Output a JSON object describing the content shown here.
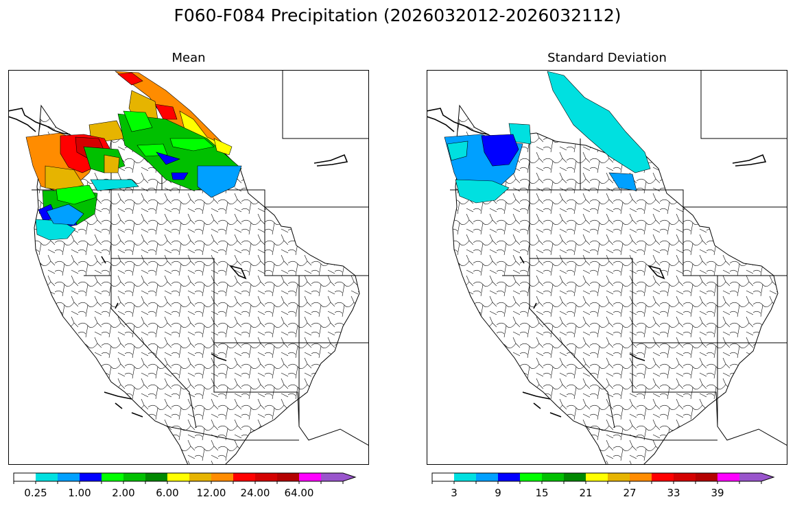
{
  "figure": {
    "title": "F060-F084 Precipitation (2026032012-2026032112)"
  },
  "panels": [
    {
      "id": "mean",
      "title": "Mean",
      "colorbar": {
        "colors": [
          "#ffffff",
          "#00e0e0",
          "#00a0ff",
          "#0000ff",
          "#00ff00",
          "#00c000",
          "#008800",
          "#ffff00",
          "#e6b400",
          "#ff8c00",
          "#ff0000",
          "#d40000",
          "#b40000",
          "#ff00ff",
          "#9955cc"
        ],
        "extend": "max",
        "tick_labels": [
          "0.25",
          "1.00",
          "2.00",
          "6.00",
          "12.00",
          "24.00",
          "64.00"
        ],
        "tick_label_boundary_index": [
          1,
          3,
          5,
          7,
          9,
          11,
          13
        ]
      }
    },
    {
      "id": "std",
      "title": "Standard Deviation",
      "colorbar": {
        "colors": [
          "#ffffff",
          "#00e0e0",
          "#00a0ff",
          "#0000ff",
          "#00ff00",
          "#00c000",
          "#008800",
          "#ffff00",
          "#e6b400",
          "#ff8c00",
          "#ff0000",
          "#d40000",
          "#b40000",
          "#ff00ff",
          "#9955cc"
        ],
        "extend": "max",
        "tick_labels": [
          "3",
          "9",
          "15",
          "21",
          "27",
          "33",
          "39"
        ],
        "tick_label_boundary_index": [
          1,
          3,
          5,
          7,
          9,
          11,
          13
        ]
      }
    }
  ]
}
